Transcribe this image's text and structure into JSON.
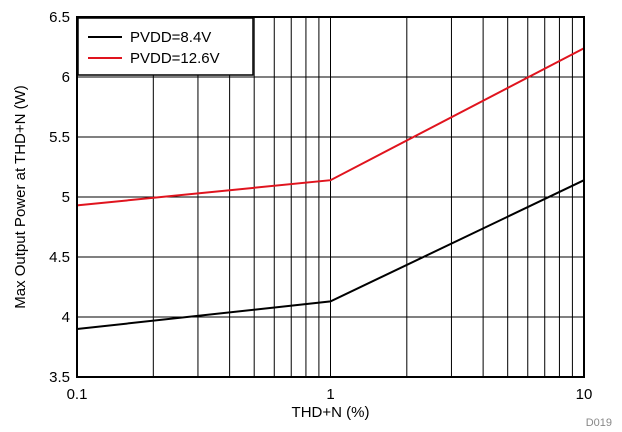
{
  "chart_data": {
    "type": "line",
    "xlabel": "THD+N (%)",
    "ylabel": "Max Output Power at THD+N (W)",
    "x_scale": "log",
    "xlim": [
      0.1,
      10
    ],
    "ylim": [
      3.5,
      6.5
    ],
    "x_ticks": [
      "0.1",
      "1",
      "10"
    ],
    "y_ticks": [
      "3.5",
      "4",
      "4.5",
      "5",
      "5.5",
      "6",
      "6.5"
    ],
    "grid": true,
    "legend_position": "top-left",
    "figure_id": "D019",
    "series": [
      {
        "name": "PVDD=8.4V",
        "color": "#000000",
        "x": [
          0.1,
          1,
          10
        ],
        "y": [
          3.9,
          4.13,
          5.14
        ]
      },
      {
        "name": "PVDD=12.6V",
        "color": "#e0141e",
        "x": [
          0.1,
          1,
          10
        ],
        "y": [
          4.93,
          5.14,
          6.24
        ]
      }
    ]
  }
}
